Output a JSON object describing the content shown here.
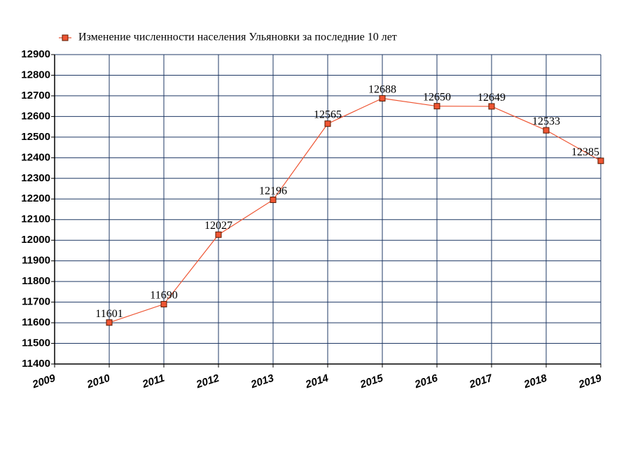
{
  "chart_data": {
    "type": "line",
    "x": [
      2010,
      2011,
      2012,
      2013,
      2014,
      2015,
      2016,
      2017,
      2018,
      2019
    ],
    "series": [
      {
        "name": "Изменение численности населения Ульяновки за последние 10 лет",
        "color": "#ee5533",
        "values": [
          11601,
          11690,
          12027,
          12196,
          12565,
          12688,
          12650,
          12649,
          12533,
          12385
        ]
      }
    ],
    "xlim": [
      2009,
      2019
    ],
    "xticks": [
      2009,
      2010,
      2011,
      2012,
      2013,
      2014,
      2015,
      2016,
      2017,
      2018,
      2019
    ],
    "ylim": [
      11400,
      12900
    ],
    "yticks": [
      11400,
      11500,
      11600,
      11700,
      11800,
      11900,
      12000,
      12100,
      12200,
      12300,
      12400,
      12500,
      12600,
      12700,
      12800,
      12900
    ],
    "grid": true,
    "legend": "top"
  }
}
